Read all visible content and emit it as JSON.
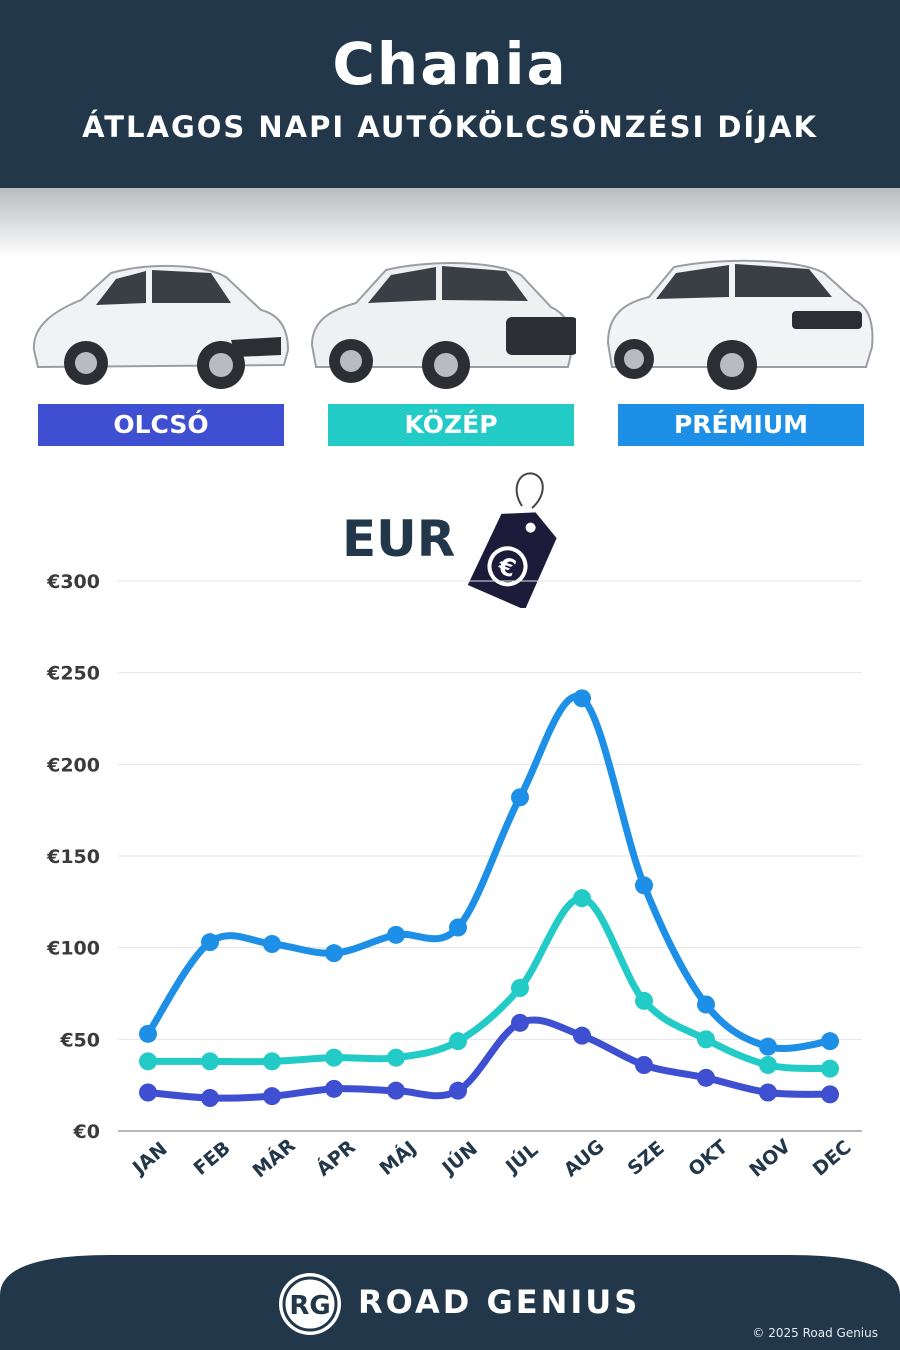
{
  "header": {
    "title": "Chania",
    "subtitle": "ÁTLAGOS NAPI AUTÓKÖLCSÖNZÉSI DÍJAK"
  },
  "categories": [
    {
      "label": "OLCSÓ",
      "color": "#3f4fd1"
    },
    {
      "label": "KÖZÉP",
      "color": "#22cbc6"
    },
    {
      "label": "PRÉMIUM",
      "color": "#1d8fe6"
    }
  ],
  "currency_label": "EUR",
  "currency_icon": "euro-price-tag-icon",
  "chart_data": {
    "type": "line",
    "title": "",
    "xlabel": "",
    "ylabel": "",
    "categories": [
      "JAN",
      "FEB",
      "MÁR",
      "ÁPR",
      "MÁJ",
      "JÚN",
      "JÚL",
      "AUG",
      "SZE",
      "OKT",
      "NOV",
      "DEC"
    ],
    "ylim": [
      0,
      300
    ],
    "yticks": [
      0,
      50,
      100,
      150,
      200,
      250,
      300
    ],
    "ytick_labels": [
      "€0",
      "€50",
      "€100",
      "€150",
      "€200",
      "€250",
      "€300"
    ],
    "grid": true,
    "series": [
      {
        "name": "PRÉMIUM",
        "color": "#1d8fe6",
        "values": [
          53,
          103,
          102,
          97,
          107,
          111,
          182,
          236,
          134,
          69,
          46,
          49
        ]
      },
      {
        "name": "KÖZÉP",
        "color": "#22cbc6",
        "values": [
          38,
          38,
          38,
          40,
          40,
          49,
          78,
          127,
          71,
          50,
          36,
          34
        ]
      },
      {
        "name": "OLCSÓ",
        "color": "#3f4fd1",
        "values": [
          21,
          18,
          19,
          23,
          22,
          22,
          59,
          52,
          36,
          29,
          21,
          20
        ]
      }
    ]
  },
  "footer": {
    "logo_mark": "RG",
    "brand": "ROAD GENIUS",
    "copyright": "© 2025 Road Genius",
    "bg_color": "#22384a"
  }
}
